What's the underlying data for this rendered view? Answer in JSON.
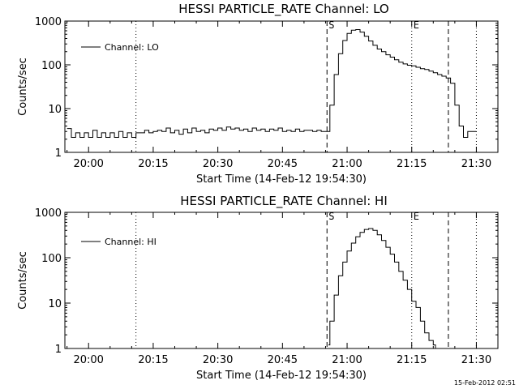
{
  "footer": {
    "timestamp": "15-Feb-2012 02:51"
  },
  "chart_data": [
    {
      "type": "line",
      "title": "HESSI PARTICLE_RATE Channel: LO",
      "xlabel": "Start Time (14-Feb-12 19:54:30)",
      "ylabel": "Counts/sec",
      "yscale": "log",
      "xlim": [
        "19:54:30",
        "21:35:00"
      ],
      "ylim": [
        1,
        1000
      ],
      "x_ticks": [
        "20:00",
        "20:15",
        "20:30",
        "20:45",
        "21:00",
        "21:15",
        "21:30"
      ],
      "y_ticks": [
        "1",
        "10",
        "100",
        "1000"
      ],
      "legend": {
        "position": "top-left",
        "entries": [
          "Channel: LO"
        ]
      },
      "vlines": [
        {
          "time": "20:11:00",
          "style": "dotted",
          "label": ""
        },
        {
          "time": "20:55:20",
          "style": "dashed",
          "label": "S"
        },
        {
          "time": "21:15:00",
          "style": "dotted",
          "label": "E"
        },
        {
          "time": "21:23:30",
          "style": "dashed",
          "label": ""
        },
        {
          "time": "21:30:00",
          "style": "dotted",
          "label": ""
        }
      ],
      "series": [
        {
          "name": "Channel: LO",
          "x": [
            "19:55:00",
            "19:56:00",
            "19:57:00",
            "19:58:00",
            "19:59:00",
            "20:00:00",
            "20:01:00",
            "20:02:00",
            "20:03:00",
            "20:04:00",
            "20:05:00",
            "20:06:00",
            "20:07:00",
            "20:08:00",
            "20:09:00",
            "20:10:00",
            "20:11:00",
            "20:12:00",
            "20:13:00",
            "20:14:00",
            "20:15:00",
            "20:16:00",
            "20:17:00",
            "20:18:00",
            "20:19:00",
            "20:20:00",
            "20:21:00",
            "20:22:00",
            "20:23:00",
            "20:24:00",
            "20:25:00",
            "20:26:00",
            "20:27:00",
            "20:28:00",
            "20:29:00",
            "20:30:00",
            "20:31:00",
            "20:32:00",
            "20:33:00",
            "20:34:00",
            "20:35:00",
            "20:36:00",
            "20:37:00",
            "20:38:00",
            "20:39:00",
            "20:40:00",
            "20:41:00",
            "20:42:00",
            "20:43:00",
            "20:44:00",
            "20:45:00",
            "20:46:00",
            "20:47:00",
            "20:48:00",
            "20:49:00",
            "20:50:00",
            "20:51:00",
            "20:52:00",
            "20:53:00",
            "20:54:00",
            "20:55:00",
            "20:55:30",
            "20:56:00",
            "20:57:00",
            "20:58:00",
            "20:59:00",
            "21:00:00",
            "21:01:00",
            "21:02:00",
            "21:03:00",
            "21:04:00",
            "21:05:00",
            "21:06:00",
            "21:07:00",
            "21:08:00",
            "21:09:00",
            "21:10:00",
            "21:11:00",
            "21:12:00",
            "21:13:00",
            "21:14:00",
            "21:15:00",
            "21:16:00",
            "21:17:00",
            "21:18:00",
            "21:19:00",
            "21:20:00",
            "21:21:00",
            "21:22:00",
            "21:23:00",
            "21:24:00",
            "21:25:00",
            "21:26:00",
            "21:27:00",
            "21:28:00",
            "21:29:00",
            "21:30:00"
          ],
          "y": [
            3.5,
            2.2,
            2.8,
            2.2,
            2.8,
            2.2,
            3.2,
            2.2,
            2.8,
            2.2,
            2.8,
            2.2,
            3.0,
            2.2,
            2.8,
            2.2,
            2.8,
            2.8,
            3.2,
            2.8,
            3.0,
            3.2,
            3.0,
            3.6,
            2.8,
            3.2,
            2.6,
            3.4,
            2.8,
            3.6,
            3.0,
            3.2,
            2.8,
            3.4,
            3.2,
            3.6,
            3.2,
            3.8,
            3.4,
            3.6,
            3.2,
            3.4,
            3.0,
            3.6,
            3.2,
            3.4,
            3.0,
            3.4,
            3.2,
            3.6,
            3.0,
            3.2,
            3.0,
            3.4,
            3.0,
            3.2,
            3.2,
            3.0,
            3.2,
            3.0,
            3.0,
            3.0,
            12,
            60,
            180,
            360,
            520,
            620,
            640,
            560,
            450,
            350,
            280,
            230,
            200,
            170,
            150,
            130,
            115,
            105,
            98,
            95,
            88,
            82,
            78,
            72,
            66,
            60,
            55,
            50,
            38,
            12,
            4,
            2.2,
            3.0,
            3.0,
            3.0
          ]
        }
      ]
    },
    {
      "type": "line",
      "title": "HESSI PARTICLE_RATE Channel: HI",
      "xlabel": "Start Time (14-Feb-12 19:54:30)",
      "ylabel": "Counts/sec",
      "yscale": "log",
      "xlim": [
        "19:54:30",
        "21:35:00"
      ],
      "ylim": [
        1,
        1000
      ],
      "x_ticks": [
        "20:00",
        "20:15",
        "20:30",
        "20:45",
        "21:00",
        "21:15",
        "21:30"
      ],
      "y_ticks": [
        "1",
        "10",
        "100",
        "1000"
      ],
      "legend": {
        "position": "top-left",
        "entries": [
          "Channel: HI"
        ]
      },
      "vlines": [
        {
          "time": "20:11:00",
          "style": "dotted",
          "label": ""
        },
        {
          "time": "20:55:20",
          "style": "dashed",
          "label": "S"
        },
        {
          "time": "21:15:00",
          "style": "dotted",
          "label": "E"
        },
        {
          "time": "21:23:30",
          "style": "dashed",
          "label": ""
        },
        {
          "time": "21:30:00",
          "style": "dotted",
          "label": ""
        }
      ],
      "series": [
        {
          "name": "Channel: HI",
          "x": [
            "20:55:40",
            "20:56:00",
            "20:57:00",
            "20:58:00",
            "20:59:00",
            "21:00:00",
            "21:01:00",
            "21:02:00",
            "21:03:00",
            "21:04:00",
            "21:05:00",
            "21:06:00",
            "21:07:00",
            "21:08:00",
            "21:09:00",
            "21:10:00",
            "21:11:00",
            "21:12:00",
            "21:13:00",
            "21:14:00",
            "21:15:00",
            "21:16:00",
            "21:17:00",
            "21:18:00",
            "21:19:00",
            "21:20:00",
            "21:20:30"
          ],
          "y": [
            1.2,
            4,
            15,
            40,
            80,
            140,
            210,
            290,
            360,
            420,
            440,
            400,
            320,
            240,
            170,
            120,
            80,
            50,
            32,
            20,
            11,
            8,
            4,
            2.2,
            1.5,
            1.2,
            1.0
          ]
        }
      ]
    }
  ]
}
